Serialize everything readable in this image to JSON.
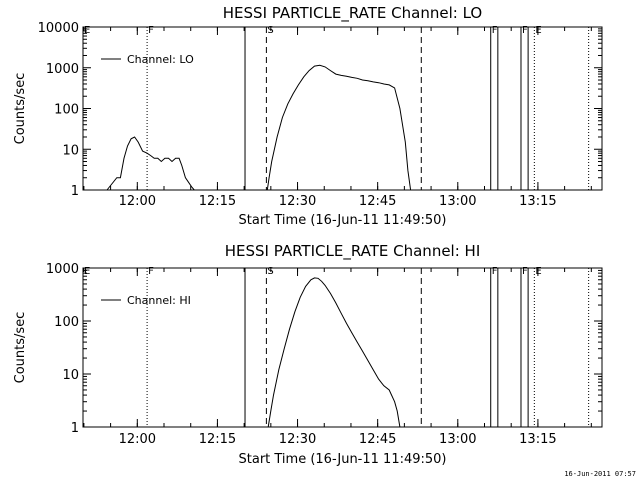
{
  "footer_stamp": "16-Jun-2011 07:57",
  "chart_data": [
    {
      "type": "line",
      "title": "HESSI PARTICLE_RATE Channel: LO",
      "xlabel": "Start Time (16-Jun-11 11:49:50)",
      "ylabel": "Counts/sec",
      "yscale": "log",
      "xlim": [
        "11:49:50",
        "13:27:00"
      ],
      "ylim": [
        1,
        10000
      ],
      "x_ticks": [
        "12:00",
        "12:15",
        "12:30",
        "12:45",
        "13:00",
        "13:15"
      ],
      "y_ticks": [
        "1",
        "10",
        "100",
        "1000",
        "10000"
      ],
      "legend": {
        "label": "Channel: LO",
        "position": "top-left"
      },
      "markers": [
        {
          "time": "11:49:50",
          "label": "E",
          "style": "solid"
        },
        {
          "time": "12:01:50",
          "label": "F",
          "style": "dotted"
        },
        {
          "time": "12:20:10",
          "label": "",
          "style": "solid"
        },
        {
          "time": "12:24:10",
          "label": "S",
          "style": "dashed"
        },
        {
          "time": "12:53:10",
          "label": "",
          "style": "dashed"
        },
        {
          "time": "13:06:10",
          "label": "F",
          "style": "solid"
        },
        {
          "time": "13:07:30",
          "label": "",
          "style": "solid"
        },
        {
          "time": "13:11:50",
          "label": "F",
          "style": "solid"
        },
        {
          "time": "13:13:10",
          "label": "",
          "style": "solid"
        },
        {
          "time": "13:14:20",
          "label": "E",
          "style": "dotted"
        },
        {
          "time": "13:24:30",
          "label": "",
          "style": "dotted"
        }
      ],
      "series": [
        {
          "name": "Channel: LO",
          "x": [
            "11:54:20",
            "11:56:10",
            "11:56:50",
            "11:57:30",
            "11:58:10",
            "11:58:50",
            "11:59:30",
            "12:00:10",
            "12:01:00",
            "12:01:50",
            "12:02:30",
            "12:03:10",
            "12:03:50",
            "12:04:30",
            "12:05:10",
            "12:05:50",
            "12:06:30",
            "12:07:10",
            "12:07:50",
            "12:08:20",
            "12:09:00",
            "12:09:40",
            "12:10:10",
            "12:10:40",
            "12:24:20",
            "12:24:40",
            "12:25:10",
            "12:26:10",
            "12:27:10",
            "12:28:10",
            "12:29:10",
            "12:30:10",
            "12:31:10",
            "12:32:10",
            "12:33:10",
            "12:34:10",
            "12:35:10",
            "12:36:10",
            "12:37:10",
            "12:38:10",
            "12:39:10",
            "12:40:10",
            "12:41:10",
            "12:42:10",
            "12:43:10",
            "12:44:10",
            "12:45:10",
            "12:46:10",
            "12:47:10",
            "12:48:10",
            "12:49:10",
            "12:50:10",
            "12:50:40",
            "12:51:10"
          ],
          "values": [
            1,
            2,
            2,
            6,
            12,
            18,
            20,
            15,
            9,
            8,
            7,
            6,
            6,
            5,
            6,
            6,
            5,
            6,
            6,
            4,
            2,
            1.5,
            1.2,
            1,
            1,
            2,
            5,
            20,
            60,
            130,
            230,
            380,
            600,
            850,
            1100,
            1150,
            1050,
            850,
            700,
            650,
            620,
            580,
            550,
            500,
            480,
            450,
            430,
            400,
            380,
            320,
            100,
            15,
            3,
            1
          ]
        }
      ]
    },
    {
      "type": "line",
      "title": "HESSI PARTICLE_RATE Channel: HI",
      "xlabel": "Start Time (16-Jun-11 11:49:50)",
      "ylabel": "Counts/sec",
      "yscale": "log",
      "xlim": [
        "11:49:50",
        "13:27:00"
      ],
      "ylim": [
        1,
        1000
      ],
      "x_ticks": [
        "12:00",
        "12:15",
        "12:30",
        "12:45",
        "13:00",
        "13:15"
      ],
      "y_ticks": [
        "1",
        "10",
        "100",
        "1000"
      ],
      "legend": {
        "label": "Channel: HI",
        "position": "top-left"
      },
      "markers": [
        {
          "time": "11:49:50",
          "label": "E",
          "style": "solid"
        },
        {
          "time": "12:01:50",
          "label": "F",
          "style": "dotted"
        },
        {
          "time": "12:20:10",
          "label": "",
          "style": "solid"
        },
        {
          "time": "12:24:10",
          "label": "S",
          "style": "dashed"
        },
        {
          "time": "12:53:10",
          "label": "",
          "style": "dashed"
        },
        {
          "time": "13:06:10",
          "label": "F",
          "style": "solid"
        },
        {
          "time": "13:07:30",
          "label": "",
          "style": "solid"
        },
        {
          "time": "13:11:50",
          "label": "F",
          "style": "solid"
        },
        {
          "time": "13:13:10",
          "label": "",
          "style": "solid"
        },
        {
          "time": "13:14:20",
          "label": "E",
          "style": "dotted"
        },
        {
          "time": "13:24:30",
          "label": "",
          "style": "dotted"
        }
      ],
      "series": [
        {
          "name": "Channel: HI",
          "x": [
            "12:24:30",
            "12:25:00",
            "12:25:30",
            "12:26:30",
            "12:27:30",
            "12:28:30",
            "12:29:30",
            "12:30:30",
            "12:31:30",
            "12:32:30",
            "12:33:10",
            "12:33:50",
            "12:34:30",
            "12:35:10",
            "12:36:10",
            "12:37:10",
            "12:38:10",
            "12:39:10",
            "12:40:10",
            "12:41:10",
            "12:42:10",
            "12:43:10",
            "12:44:10",
            "12:45:10",
            "12:46:10",
            "12:47:10",
            "12:48:10",
            "12:48:40",
            "12:49:10"
          ],
          "values": [
            1,
            2,
            4,
            12,
            30,
            70,
            150,
            280,
            450,
            600,
            650,
            640,
            560,
            470,
            330,
            220,
            140,
            90,
            60,
            40,
            27,
            18,
            12,
            8,
            6,
            5,
            3,
            2,
            1
          ]
        }
      ]
    }
  ]
}
